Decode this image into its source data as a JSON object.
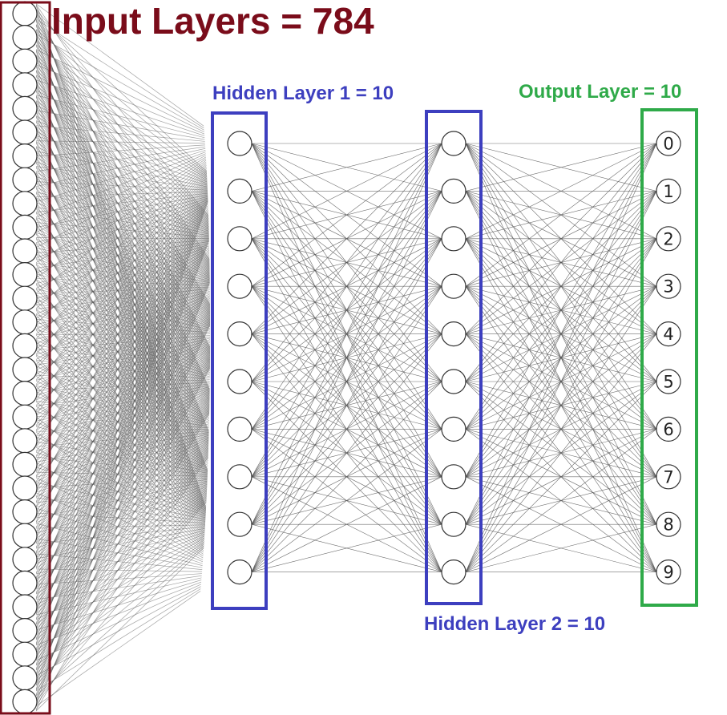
{
  "labels": {
    "input": "Input Layers = 784",
    "hidden1": "Hidden Layer 1 = 10",
    "hidden2": "Hidden Layer 2 = 10",
    "output": "Output Layer = 10"
  },
  "layers": {
    "input_count": 784,
    "hidden1_count": 10,
    "hidden2_count": 10,
    "output_count": 10
  },
  "output_digits": [
    "0",
    "1",
    "2",
    "3",
    "4",
    "5",
    "6",
    "7",
    "8",
    "9"
  ],
  "colors": {
    "input": "#7a0c1a",
    "hidden": "#3d3fbf",
    "output": "#2faa49",
    "edge": "#555555",
    "node_stroke": "#333333",
    "node_fill": "#ffffff"
  }
}
